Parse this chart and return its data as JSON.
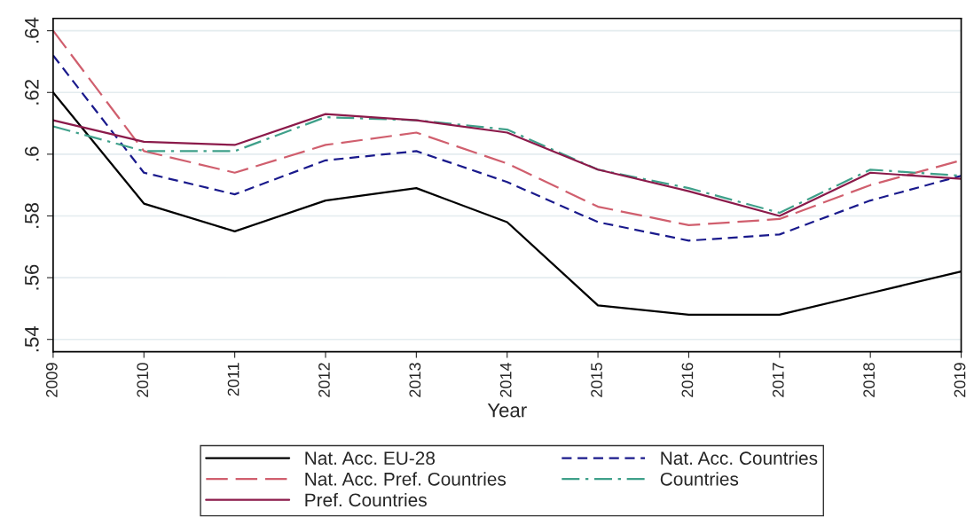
{
  "chart_data": {
    "type": "line",
    "xlabel": "Year",
    "x": [
      2009,
      2010,
      2011,
      2012,
      2013,
      2014,
      2015,
      2016,
      2017,
      2018,
      2019
    ],
    "xlim": [
      2009,
      2019
    ],
    "xticks": [
      2009,
      2010,
      2011,
      2012,
      2013,
      2014,
      2015,
      2016,
      2017,
      2018,
      2019
    ],
    "ylim": [
      0.536,
      0.644
    ],
    "yticks": [
      {
        "value": 0.54,
        "label": ".54"
      },
      {
        "value": 0.56,
        "label": ".56"
      },
      {
        "value": 0.58,
        "label": ".58"
      },
      {
        "value": 0.6,
        "label": ".6"
      },
      {
        "value": 0.62,
        "label": ".62"
      },
      {
        "value": 0.64,
        "label": ".64"
      }
    ],
    "grid": "y",
    "legend": "bottom",
    "marker": "none",
    "series": [
      {
        "name": "Nat. Acc. EU-28",
        "color": "#000000",
        "line_style": "solid",
        "values": [
          0.62,
          0.584,
          0.575,
          0.585,
          0.589,
          0.578,
          0.551,
          0.548,
          0.548,
          0.555,
          0.562
        ]
      },
      {
        "name": "Nat. Acc. Countries",
        "color": "#1a1a8c",
        "line_style": "dashed",
        "values": [
          0.632,
          0.594,
          0.587,
          0.598,
          0.601,
          0.591,
          0.578,
          0.572,
          0.574,
          0.585,
          0.593
        ]
      },
      {
        "name": "Nat. Acc. Pref. Countries",
        "color": "#d05f6e",
        "line_style": "longdash",
        "values": [
          0.64,
          0.601,
          0.594,
          0.603,
          0.607,
          0.597,
          0.583,
          0.577,
          0.579,
          0.59,
          0.598
        ]
      },
      {
        "name": "Countries",
        "color": "#3fa08a",
        "line_style": "dashdot",
        "values": [
          0.609,
          0.601,
          0.601,
          0.612,
          0.611,
          0.608,
          0.595,
          0.589,
          0.581,
          0.595,
          0.593
        ]
      },
      {
        "name": "Pref. Countries",
        "color": "#8b1a4a",
        "line_style": "solid",
        "values": [
          0.611,
          0.604,
          0.603,
          0.613,
          0.611,
          0.607,
          0.595,
          0.588,
          0.58,
          0.594,
          0.592
        ]
      }
    ]
  }
}
